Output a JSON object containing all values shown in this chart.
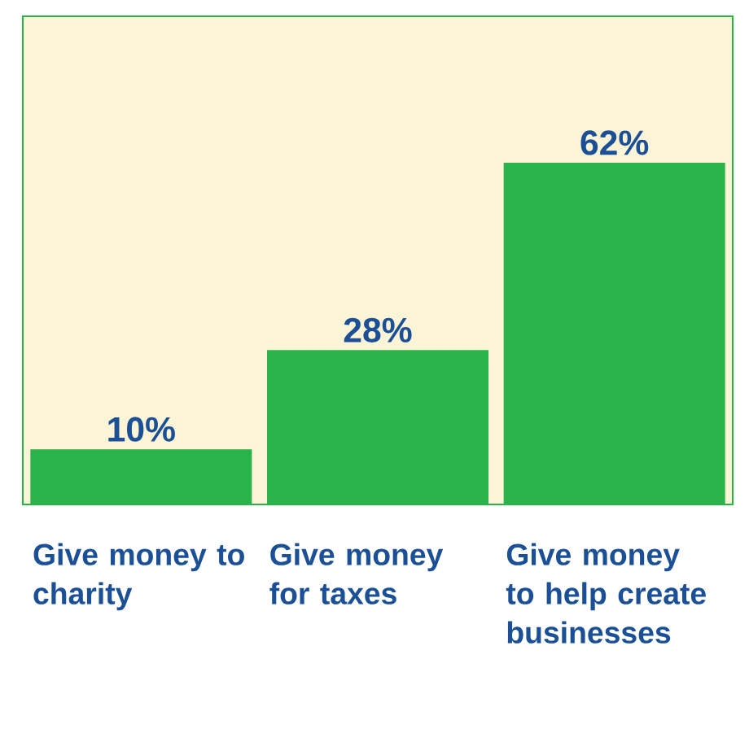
{
  "chart_data": {
    "type": "bar",
    "categories": [
      "Give money to charity",
      "Give money for taxes",
      "Give money to help create businesses"
    ],
    "values": [
      10,
      28,
      62
    ],
    "color": "#2bb34b",
    "value_labels": [
      "10%",
      "28%",
      "62%"
    ]
  }
}
